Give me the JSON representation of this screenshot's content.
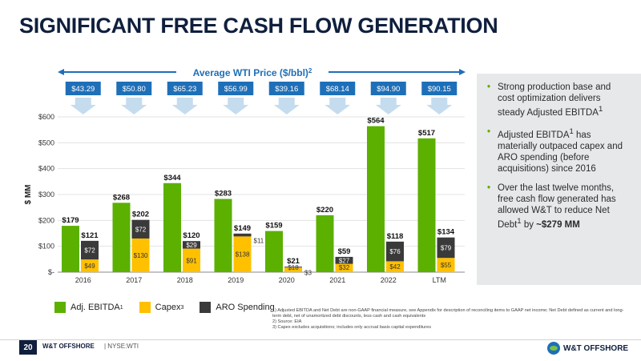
{
  "title": "SIGNIFICANT FREE CASH FLOW GENERATION",
  "bullets": [
    {
      "text": "Strong production base and cost optimization delivers steady Adjusted EBITDA",
      "sup": "1",
      "tail": ""
    },
    {
      "text": "Adjusted EBITDA",
      "sup": "1",
      "tail": " has materially outpaced capex and ARO spending (before acquisitions) since 2016"
    },
    {
      "text": "Over the last twelve months, free cash flow generated has allowed W&T to reduce Net Debt",
      "sup": "1",
      "tail": " by ",
      "bold": "~$279 MM"
    }
  ],
  "legend": {
    "ebitda": "Adj. EBITDA",
    "ebitda_sup": "1",
    "capex": "Capex",
    "capex_sup": "3",
    "aro": "ARO Spending"
  },
  "notes": [
    "1)  Adjusted EBITDA and Net Debt are non-GAAP financial measure, see Appendix for description of reconciling items to GAAP net income; Net Debt defined as current and long-term debt, net of unamortized debt discounts, less cash and cash equivalents",
    "2)  Source: EIA",
    "3)  Capex excludes acquisitions; includes only accrual basis capital expenditures"
  ],
  "footer": {
    "page": "20",
    "company": "W&T OFFSHORE",
    "ticker": "| NYSE:WTI",
    "logo": "W&T OFFSHORE"
  },
  "colors": {
    "ebitda": "#5bb000",
    "capex": "#ffc000",
    "aro": "#3a3a3a",
    "wti": "#1e6fb8",
    "arrow": "#c5dcef"
  },
  "chart_data": {
    "type": "bar",
    "ylabel": "$ MM",
    "ylim": [
      0,
      600
    ],
    "yticks": [
      "$-",
      "$100",
      "$200",
      "$300",
      "$400",
      "$500",
      "$600"
    ],
    "categories": [
      "2016",
      "2017",
      "2018",
      "2019",
      "2020",
      "2021",
      "2022",
      "LTM"
    ],
    "wti_title": "Average WTI Price ($/bbl)",
    "wti_sup": "2",
    "wti_prices": [
      "$43.29",
      "$50.80",
      "$65.23",
      "$56.99",
      "$39.16",
      "$68.14",
      "$94.90",
      "$90.15"
    ],
    "series": [
      {
        "name": "Adj. EBITDA",
        "values": [
          179,
          268,
          344,
          283,
          159,
          220,
          564,
          517
        ],
        "labels": [
          "$179",
          "$268",
          "$344",
          "$283",
          "$159",
          "$220",
          "$564",
          "$517"
        ]
      },
      {
        "name": "Capex",
        "values": [
          49,
          130,
          91,
          138,
          18,
          32,
          42,
          55
        ],
        "labels": [
          "$49",
          "$130",
          "$91",
          "$138",
          "$18",
          "$32",
          "$42",
          "$55"
        ]
      },
      {
        "name": "ARO Spending",
        "values": [
          72,
          72,
          29,
          11,
          3,
          27,
          76,
          79
        ],
        "labels": [
          "$72",
          "$72",
          "$29",
          "$11",
          "$3",
          "$27",
          "$76",
          "$79"
        ]
      }
    ],
    "stack_totals": [
      "$121",
      "$202",
      "$120",
      "$149",
      "$21",
      "$59",
      "$118",
      "$134"
    ],
    "stack_total_values": [
      121,
      202,
      120,
      149,
      21,
      59,
      118,
      134
    ]
  }
}
